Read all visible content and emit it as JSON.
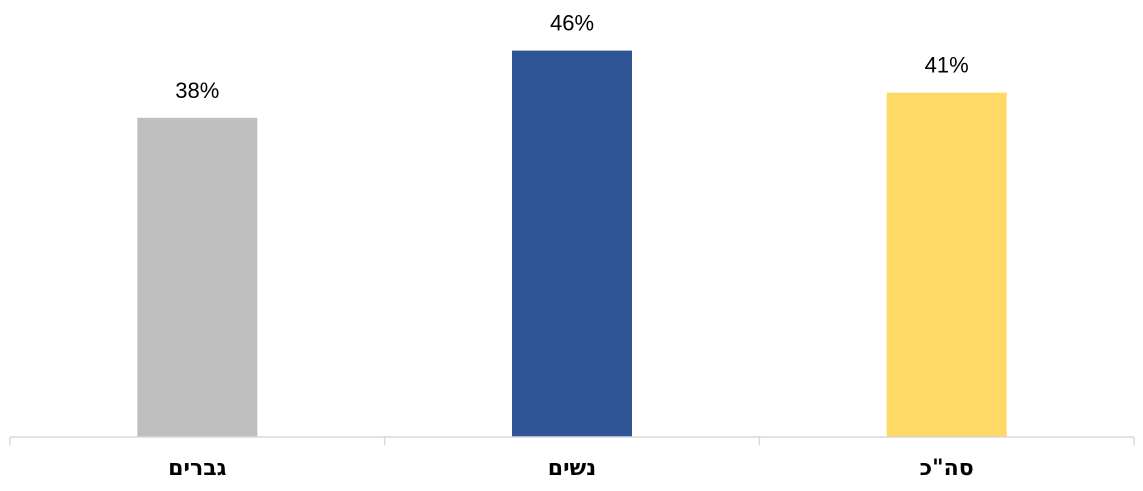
{
  "chart_data": {
    "type": "bar",
    "title": "",
    "xlabel": "",
    "ylabel": "",
    "categories": [
      "גברים",
      "נשים",
      "סה\"כ"
    ],
    "values": [
      38,
      46,
      41
    ],
    "value_labels": [
      "38%",
      "46%",
      "41%"
    ],
    "value_unit": "%",
    "colors": [
      "#bfbfbf",
      "#2f5597",
      "#ffd966"
    ],
    "axis_color": "#d9d9d9",
    "ylim": [
      0,
      50
    ],
    "grid": false,
    "legend": "none"
  }
}
